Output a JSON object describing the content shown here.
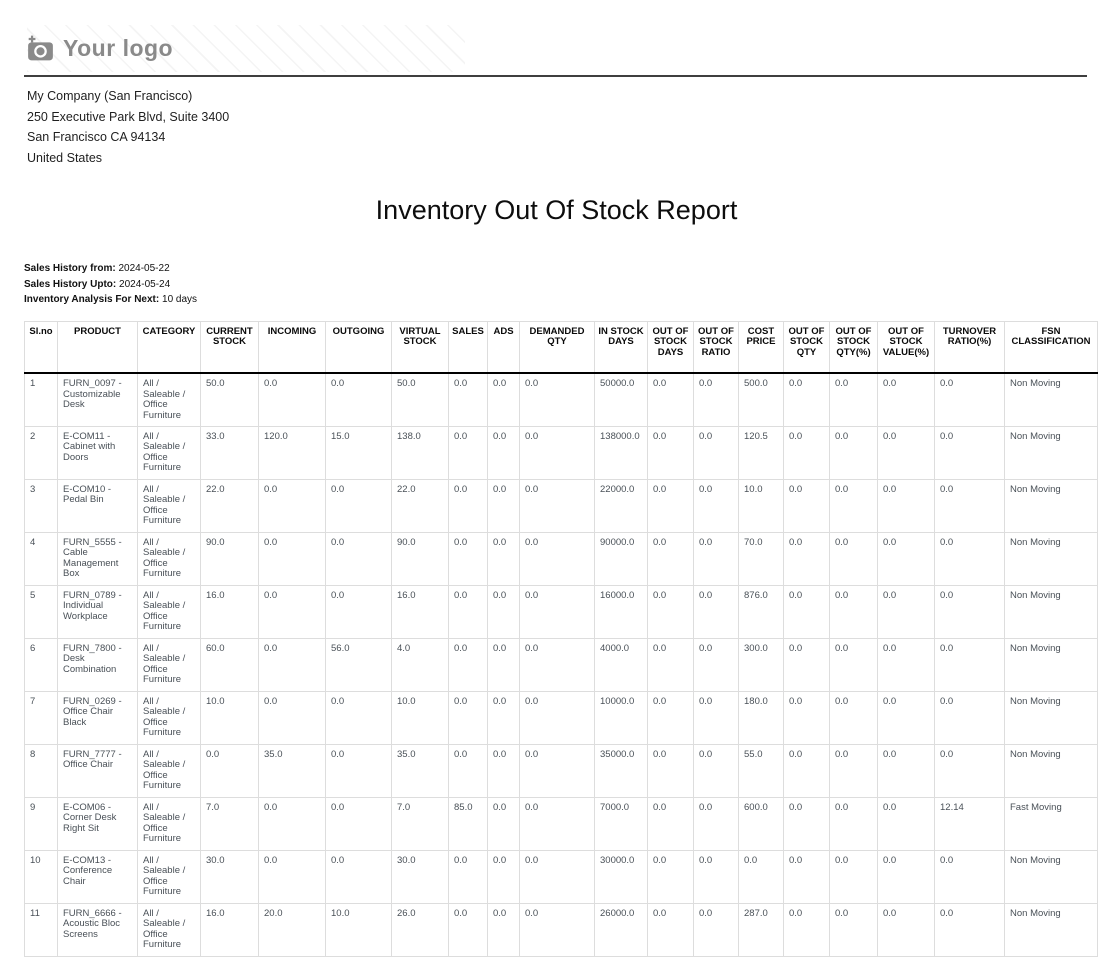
{
  "logo": {
    "text": "Your logo",
    "icon": "camera-plus-icon"
  },
  "company": {
    "name": "My Company (San Francisco)",
    "street": "250 Executive Park Blvd, Suite 3400",
    "city": "San Francisco CA 94134",
    "country": "United States"
  },
  "report": {
    "title": "Inventory Out Of Stock Report",
    "meta": [
      {
        "label": "Sales History from:",
        "value": "2024-05-22"
      },
      {
        "label": "Sales History Upto:",
        "value": "2024-05-24"
      },
      {
        "label": "Inventory Analysis For Next:",
        "value": "10 days"
      }
    ]
  },
  "table": {
    "headers": [
      "Sl.no",
      "PRODUCT",
      "CATEGORY",
      "CURRENT STOCK",
      "INCOMING",
      "OUTGOING",
      "VIRTUAL STOCK",
      "SALES",
      "ADS",
      "DEMANDED QTY",
      "IN STOCK DAYS",
      "OUT OF STOCK DAYS",
      "OUT OF STOCK RATIO",
      "COST PRICE",
      "OUT OF STOCK QTY",
      "OUT OF STOCK QTY(%)",
      "OUT OF STOCK VALUE(%)",
      "TURNOVER RATIO(%)",
      "FSN CLASSIFICATION"
    ],
    "rows": [
      [
        "1",
        "FURN_0097 - Customizable Desk",
        "All / Saleable / Office Furniture",
        "50.0",
        "0.0",
        "0.0",
        "50.0",
        "0.0",
        "0.0",
        "0.0",
        "50000.0",
        "0.0",
        "0.0",
        "500.0",
        "0.0",
        "0.0",
        "0.0",
        "0.0",
        "Non Moving"
      ],
      [
        "2",
        "E-COM11 - Cabinet with Doors",
        "All / Saleable / Office Furniture",
        "33.0",
        "120.0",
        "15.0",
        "138.0",
        "0.0",
        "0.0",
        "0.0",
        "138000.0",
        "0.0",
        "0.0",
        "120.5",
        "0.0",
        "0.0",
        "0.0",
        "0.0",
        "Non Moving"
      ],
      [
        "3",
        "E-COM10 - Pedal Bin",
        "All / Saleable / Office Furniture",
        "22.0",
        "0.0",
        "0.0",
        "22.0",
        "0.0",
        "0.0",
        "0.0",
        "22000.0",
        "0.0",
        "0.0",
        "10.0",
        "0.0",
        "0.0",
        "0.0",
        "0.0",
        "Non Moving"
      ],
      [
        "4",
        "FURN_5555 - Cable Management Box",
        "All / Saleable / Office Furniture",
        "90.0",
        "0.0",
        "0.0",
        "90.0",
        "0.0",
        "0.0",
        "0.0",
        "90000.0",
        "0.0",
        "0.0",
        "70.0",
        "0.0",
        "0.0",
        "0.0",
        "0.0",
        "Non Moving"
      ],
      [
        "5",
        "FURN_0789 - Individual Workplace",
        "All / Saleable / Office Furniture",
        "16.0",
        "0.0",
        "0.0",
        "16.0",
        "0.0",
        "0.0",
        "0.0",
        "16000.0",
        "0.0",
        "0.0",
        "876.0",
        "0.0",
        "0.0",
        "0.0",
        "0.0",
        "Non Moving"
      ],
      [
        "6",
        "FURN_7800 - Desk Combination",
        "All / Saleable / Office Furniture",
        "60.0",
        "0.0",
        "56.0",
        "4.0",
        "0.0",
        "0.0",
        "0.0",
        "4000.0",
        "0.0",
        "0.0",
        "300.0",
        "0.0",
        "0.0",
        "0.0",
        "0.0",
        "Non Moving"
      ],
      [
        "7",
        "FURN_0269 - Office Chair Black",
        "All / Saleable / Office Furniture",
        "10.0",
        "0.0",
        "0.0",
        "10.0",
        "0.0",
        "0.0",
        "0.0",
        "10000.0",
        "0.0",
        "0.0",
        "180.0",
        "0.0",
        "0.0",
        "0.0",
        "0.0",
        "Non Moving"
      ],
      [
        "8",
        "FURN_7777 - Office Chair",
        "All / Saleable / Office Furniture",
        "0.0",
        "35.0",
        "0.0",
        "35.0",
        "0.0",
        "0.0",
        "0.0",
        "35000.0",
        "0.0",
        "0.0",
        "55.0",
        "0.0",
        "0.0",
        "0.0",
        "0.0",
        "Non Moving"
      ],
      [
        "9",
        "E-COM06 - Corner Desk Right Sit",
        "All / Saleable / Office Furniture",
        "7.0",
        "0.0",
        "0.0",
        "7.0",
        "85.0",
        "0.0",
        "0.0",
        "7000.0",
        "0.0",
        "0.0",
        "600.0",
        "0.0",
        "0.0",
        "0.0",
        "12.14",
        "Fast Moving"
      ],
      [
        "10",
        "E-COM13 - Conference Chair",
        "All / Saleable / Office Furniture",
        "30.0",
        "0.0",
        "0.0",
        "30.0",
        "0.0",
        "0.0",
        "0.0",
        "30000.0",
        "0.0",
        "0.0",
        "0.0",
        "0.0",
        "0.0",
        "0.0",
        "0.0",
        "Non Moving"
      ],
      [
        "11",
        "FURN_6666 - Acoustic Bloc Screens",
        "All / Saleable / Office Furniture",
        "16.0",
        "20.0",
        "10.0",
        "26.0",
        "0.0",
        "0.0",
        "0.0",
        "26000.0",
        "0.0",
        "0.0",
        "287.0",
        "0.0",
        "0.0",
        "0.0",
        "0.0",
        "Non Moving"
      ]
    ]
  }
}
